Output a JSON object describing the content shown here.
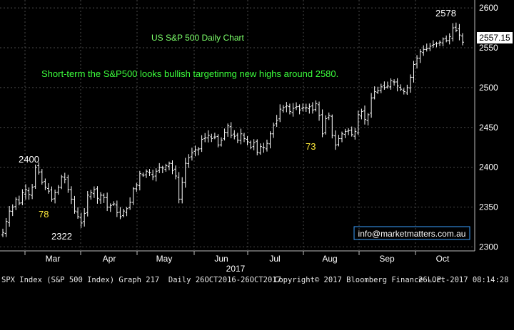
{
  "chart_data": {
    "type": "ohlc",
    "title": "US S&P 500 Daily Chart",
    "commentary": "Short-term the S&P500 looks bullish targetinmg new highs around 2580.",
    "year_label": "2017",
    "x_ticks": [
      "Mar",
      "Apr",
      "May",
      "Jun",
      "Jul",
      "Aug",
      "Sep",
      "Oct"
    ],
    "y_ticks": [
      2300,
      2350,
      2400,
      2450,
      2500,
      2550,
      2600
    ],
    "ylim": [
      2295,
      2610
    ],
    "last_price": "2557.15",
    "annotations": [
      "2400",
      "78",
      "2322",
      "73",
      "2578"
    ],
    "contact": "info@marketmatters.com.au",
    "closes": [
      2318,
      2332,
      2345,
      2350,
      2360,
      2355,
      2368,
      2372,
      2366,
      2375,
      2400,
      2394,
      2381,
      2375,
      2370,
      2360,
      2368,
      2375,
      2388,
      2385,
      2372,
      2360,
      2345,
      2338,
      2330,
      2342,
      2365,
      2368,
      2372,
      2361,
      2365,
      2362,
      2350,
      2352,
      2354,
      2343,
      2338,
      2345,
      2348,
      2356,
      2373,
      2378,
      2392,
      2390,
      2395,
      2393,
      2388,
      2395,
      2400,
      2399,
      2402,
      2405,
      2396,
      2389,
      2360,
      2381,
      2405,
      2412,
      2418,
      2422,
      2423,
      2435,
      2437,
      2440,
      2436,
      2438,
      2428,
      2434,
      2444,
      2452,
      2440,
      2439,
      2434,
      2442,
      2436,
      2432,
      2425,
      2431,
      2419,
      2426,
      2425,
      2430,
      2442,
      2453,
      2459,
      2473,
      2475,
      2477,
      2470,
      2474,
      2476,
      2472,
      2475,
      2475,
      2476,
      2472,
      2480,
      2465,
      2442,
      2461,
      2465,
      2440,
      2428,
      2436,
      2442,
      2445,
      2446,
      2441,
      2445,
      2466,
      2470,
      2460,
      2466,
      2487,
      2495,
      2496,
      2501,
      2500,
      2502,
      2509,
      2507,
      2502,
      2498,
      2495,
      2500,
      2513,
      2529,
      2537,
      2545,
      2548,
      2549,
      2552,
      2554,
      2555,
      2557,
      2561,
      2559,
      2564,
      2575,
      2572,
      2566,
      2557
    ]
  },
  "footer": {
    "left": "SPX Index (S&P 500 Index) Graph 217  Daily 26OCT2016-26OCT2017",
    "center": "Copyright© 2017 Bloomberg Finance L.P.",
    "right": "26-Oct-2017 08:14:28"
  }
}
